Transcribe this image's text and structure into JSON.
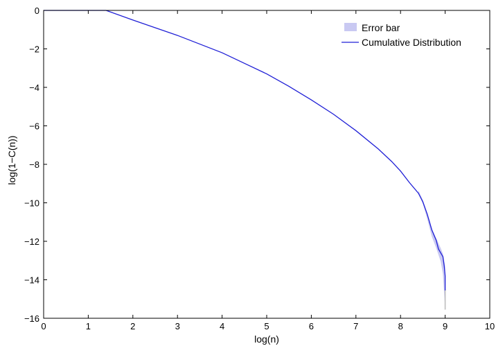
{
  "chart_data": {
    "type": "line",
    "title": "",
    "xlabel": "log(n)",
    "ylabel": "log(1−C(n))",
    "xlim": [
      0,
      10
    ],
    "ylim": [
      -16,
      0
    ],
    "xticks": [
      "0",
      "1",
      "2",
      "3",
      "4",
      "5",
      "6",
      "7",
      "8",
      "9",
      "10"
    ],
    "yticks": [
      "0",
      "−2",
      "−4",
      "−6",
      "−8",
      "−10",
      "−12",
      "−14",
      "−16"
    ],
    "grid": false,
    "legend_position": "top-right",
    "colors": {
      "line": "#1f1fd6",
      "error_fill": "#c9c9f2",
      "error_tail": "#bdbdbd"
    },
    "series": [
      {
        "name": "Error bar",
        "kind": "band",
        "x": [
          8.4,
          8.5,
          8.6,
          8.7,
          8.8,
          8.9,
          8.95,
          9.0
        ],
        "lower": [
          -9.5,
          -10.05,
          -10.85,
          -11.75,
          -12.35,
          -13.05,
          -13.7,
          -15.55
        ],
        "upper": [
          -9.35,
          -9.85,
          -10.55,
          -11.35,
          -11.85,
          -12.35,
          -12.65,
          -13.3
        ]
      },
      {
        "name": "Cumulative Distribution",
        "kind": "line",
        "x": [
          0,
          1.0,
          1.4,
          2.0,
          2.5,
          3.0,
          3.5,
          4.0,
          4.5,
          5.0,
          5.5,
          6.0,
          6.5,
          7.0,
          7.5,
          7.8,
          8.0,
          8.2,
          8.4,
          8.5,
          8.6,
          8.7,
          8.8,
          8.85,
          8.9,
          8.95,
          8.98,
          9.0,
          9.0
        ],
        "y": [
          0,
          0,
          0,
          -0.5,
          -0.9,
          -1.3,
          -1.75,
          -2.2,
          -2.75,
          -3.3,
          -3.95,
          -4.65,
          -5.4,
          -6.25,
          -7.2,
          -7.85,
          -8.35,
          -8.95,
          -9.5,
          -9.95,
          -10.6,
          -11.4,
          -11.95,
          -12.4,
          -12.6,
          -12.8,
          -13.3,
          -13.8,
          -14.55
        ]
      }
    ]
  }
}
